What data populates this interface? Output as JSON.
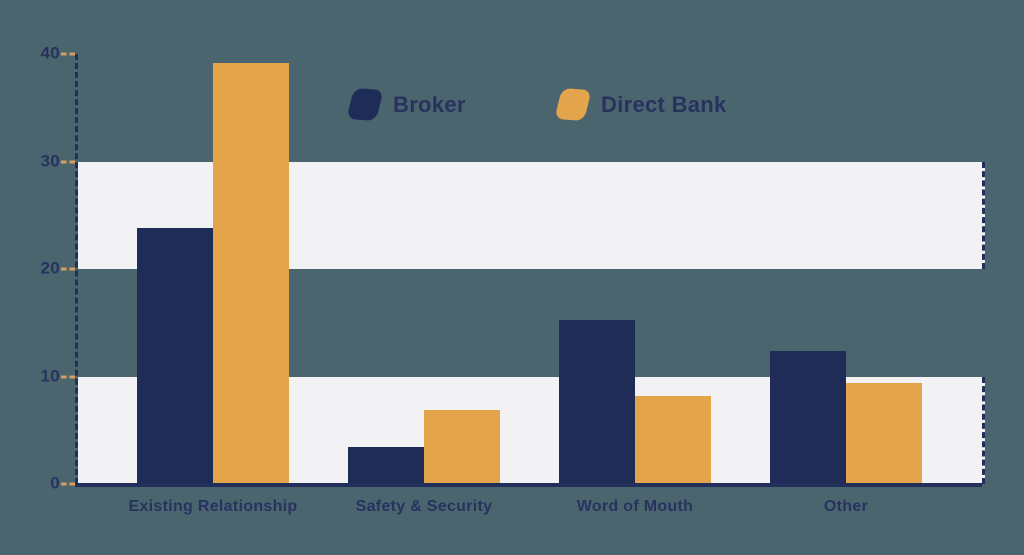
{
  "colors": {
    "background": "#4b656e",
    "band": "#f2f2f4",
    "navy": "#202c58",
    "orange": "#e4a44c",
    "axis": "#232f5b",
    "text": "#27325f",
    "tick_dash": "#d99d60"
  },
  "legend": {
    "items": [
      {
        "label": "Broker",
        "color": "#202c58"
      },
      {
        "label": "Direct Bank",
        "color": "#e4a44c"
      }
    ]
  },
  "chart_data": {
    "type": "bar",
    "categories": [
      "Existing Relationship",
      "Safety & Security",
      "Word of Mouth",
      "Other"
    ],
    "series": [
      {
        "name": "Broker",
        "color": "#202c58",
        "values": [
          23.8,
          3.4,
          15.3,
          12.4
        ]
      },
      {
        "name": "Direct Bank",
        "color": "#e4a44c",
        "values": [
          39.2,
          6.9,
          8.2,
          9.4
        ]
      }
    ],
    "title": "",
    "xlabel": "",
    "ylabel": "",
    "ylim": [
      0,
      40
    ],
    "yticks": [
      0,
      10,
      20,
      30,
      40
    ],
    "bands": [
      [
        20,
        30
      ],
      [
        0,
        10
      ]
    ],
    "grid": "alternating horizontal bands",
    "legend_position": "top-center"
  }
}
